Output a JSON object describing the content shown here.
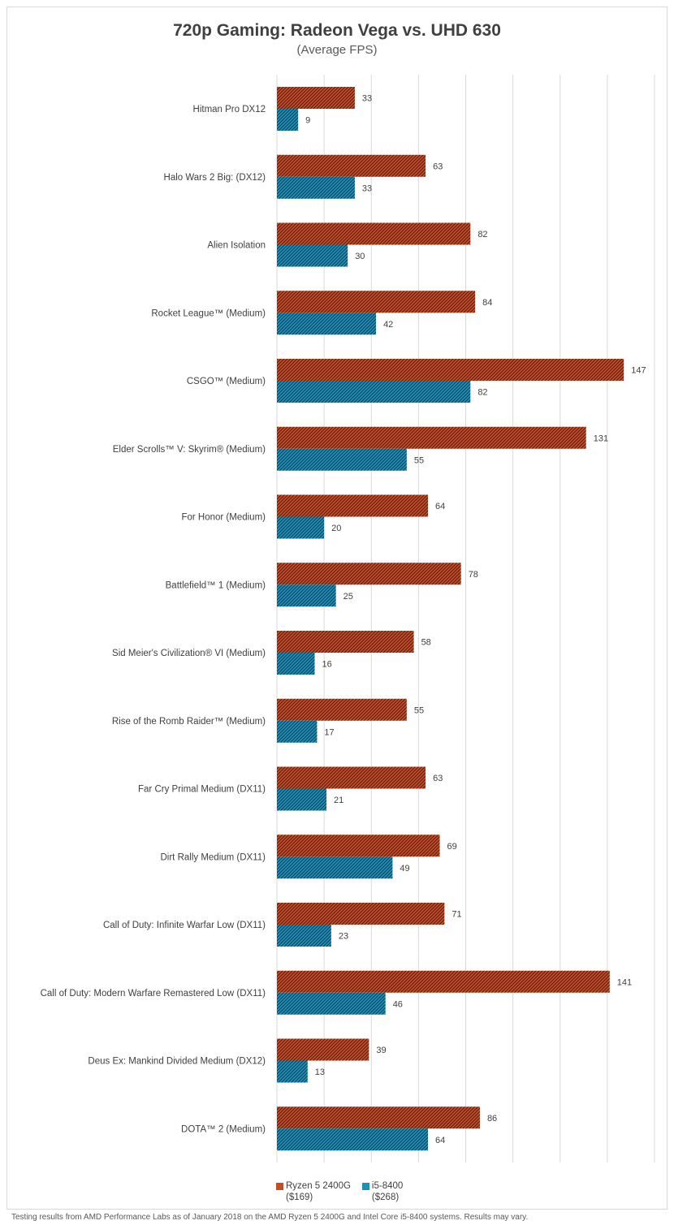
{
  "chart_data": {
    "type": "bar",
    "orientation": "horizontal",
    "title": "720p Gaming: Radeon Vega vs. UHD 630",
    "subtitle": "(Average FPS)",
    "categories": [
      "Hitman Pro DX12",
      "Halo Wars 2 Big:  (DX12)",
      "Alien Isolation",
      "Rocket League™ (Medium)",
      "CSGO™ (Medium)",
      "Elder Scrolls™ V: Skyrim® (Medium)",
      "For Honor (Medium)",
      "Battlefield™ 1 (Medium)",
      "Sid Meier's Civilization® VI (Medium)",
      "Rise of the Romb Raider™ (Medium)",
      "Far Cry Primal Medium (DX11)",
      "Dirt Rally Medium (DX11)",
      "Call of Duty: Infinite Warfar Low (DX11)",
      "Call of Duty: Modern Warfare Remastered Low (DX11)",
      "Deus Ex: Mankind Divided Medium (DX12)",
      "DOTA™ 2 (Medium)"
    ],
    "series": [
      {
        "name": "Ryzen 5 2400G",
        "legend_sub": "($169)",
        "color": "#c0502a",
        "values": [
          33,
          63,
          82,
          84,
          147,
          131,
          64,
          78,
          58,
          55,
          63,
          69,
          71,
          141,
          39,
          86
        ]
      },
      {
        "name": "i5-8400",
        "legend_sub": "($268)",
        "color": "#1e8fb8",
        "values": [
          9,
          33,
          30,
          42,
          82,
          55,
          20,
          25,
          16,
          17,
          21,
          49,
          23,
          46,
          13,
          64
        ]
      }
    ],
    "xlim": [
      0,
      160
    ],
    "grid": true,
    "data_labels": true,
    "legend_position": "bottom"
  },
  "footnote": "Testing results from AMD Performance Labs as of January 2018 on the AMD Ryzen 5 2400G and Intel Core i5-8400 systems. Results may vary."
}
